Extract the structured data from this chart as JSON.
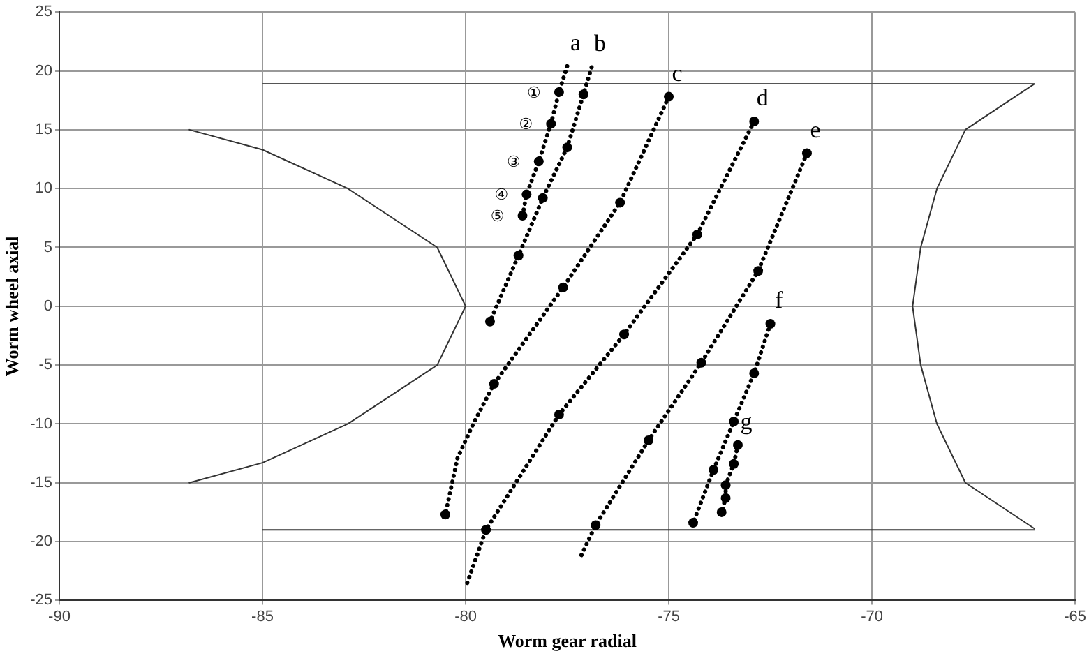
{
  "chart_data": {
    "type": "line",
    "xlabel": "Worm gear radial",
    "ylabel": "Worm wheel axial",
    "xlim": [
      -90,
      -65
    ],
    "xticks": [
      -90,
      -85,
      -80,
      -75,
      -70,
      -65
    ],
    "ylim": [
      -25,
      25
    ],
    "yticks": [
      -25,
      -20,
      -15,
      -10,
      -5,
      0,
      5,
      10,
      15,
      20,
      25
    ],
    "grid": true,
    "legend": false,
    "marker": "none",
    "line_style": "solid",
    "series": [
      {
        "color": "#333333",
        "x": [
          -86.8,
          -85,
          -82.9,
          -80.7,
          -80,
          -80.7,
          -82.9,
          -85,
          -86.8
        ],
        "values": [
          15,
          13.3,
          10,
          5,
          0,
          -5,
          -10,
          -13.3,
          -15
        ]
      },
      {
        "color": "#333333",
        "x": [
          -66,
          -67.7,
          -68.4,
          -68.8,
          -69,
          -68.8,
          -68.4,
          -67.7,
          -66
        ],
        "values": [
          18.9,
          15,
          10,
          5,
          0,
          -5,
          -10,
          -15,
          -18.9
        ]
      },
      {
        "color": "#555555",
        "x": [
          -85,
          -66
        ],
        "values": [
          18.9,
          18.9
        ]
      },
      {
        "color": "#333333",
        "x": [
          -85,
          -66
        ],
        "values": [
          -19,
          -19
        ]
      },
      {
        "name": "a",
        "color": "#000000",
        "line_style": "dotted",
        "x": [
          -77.5,
          -77.7,
          -77.9,
          -78.2,
          -78.5,
          -78.6
        ],
        "values": [
          20.4,
          18.2,
          15.5,
          12.3,
          9.5,
          7.7
        ]
      },
      {
        "name": "b",
        "color": "#000000",
        "line_style": "dotted",
        "x": [
          -76.9,
          -77.1,
          -77.5,
          -78.1,
          -78.7,
          -79.4
        ],
        "values": [
          20.3,
          18,
          13.5,
          9.2,
          4.3,
          -1.3
        ]
      },
      {
        "name": "c",
        "color": "#000000",
        "line_style": "dotted",
        "x": [
          -75,
          -76.2,
          -77.6,
          -79.3,
          -79.8,
          -80.2,
          -80.5
        ],
        "values": [
          17.8,
          8.8,
          1.6,
          -6.6,
          -9.9,
          -12.9,
          -17.7
        ]
      },
      {
        "name": "d",
        "color": "#000000",
        "line_style": "dotted",
        "x": [
          -72.9,
          -74.3,
          -76.1,
          -77.7,
          -79.5,
          -80
        ],
        "values": [
          15.7,
          6.1,
          -2.4,
          -9.2,
          -19,
          -23.9
        ]
      },
      {
        "name": "e",
        "color": "#000000",
        "line_style": "dotted",
        "x": [
          -71.6,
          -72.8,
          -74.2,
          -75.5,
          -76.8,
          -77.2
        ],
        "values": [
          13,
          3,
          -4.8,
          -11.4,
          -18.6,
          -21.5
        ]
      },
      {
        "name": "f",
        "color": "#000000",
        "line_style": "dotted",
        "x": [
          -72.5,
          -72.9,
          -73.4,
          -73.9,
          -74.4
        ],
        "values": [
          -1.5,
          -5.7,
          -9.8,
          -13.9,
          -18.4
        ]
      },
      {
        "name": "g",
        "color": "#000000",
        "line_style": "dotted",
        "x": [
          -73.3,
          -73.4,
          -73.6,
          -73.6,
          -73.7
        ],
        "values": [
          -11.8,
          -13.4,
          -15.2,
          -16.3,
          -17.5
        ]
      },
      {
        "type": "scatter",
        "marker": "circle",
        "color": "#000000",
        "x": [
          -77.7,
          -77.9,
          -78.2,
          -78.5,
          -78.6,
          -77.1,
          -77.5,
          -78.1,
          -78.7,
          -79.4,
          -75,
          -76.2,
          -77.6,
          -79.3,
          -80.5,
          -72.9,
          -74.3,
          -76.1,
          -77.7,
          -79.5,
          -71.6,
          -72.8,
          -74.2,
          -75.5,
          -76.8,
          -72.5,
          -72.9,
          -73.4,
          -73.9,
          -74.4,
          -73.3,
          -73.4,
          -73.6,
          -73.6,
          -73.7
        ],
        "values": [
          18.2,
          15.5,
          12.3,
          9.5,
          7.7,
          18,
          13.5,
          9.2,
          4.3,
          -1.3,
          17.8,
          8.8,
          1.6,
          -6.6,
          -17.7,
          15.7,
          6.1,
          -2.4,
          -9.2,
          -19,
          13,
          3,
          -4.8,
          -11.4,
          -18.6,
          -1.5,
          -5.7,
          -9.8,
          -13.9,
          -18.4,
          -11.8,
          -13.4,
          -15.2,
          -16.3,
          -17.5
        ]
      }
    ],
    "annotations": [
      {
        "text": "①",
        "x": -77.7,
        "y": 18.2
      },
      {
        "text": "②",
        "x": -77.9,
        "y": 15.5
      },
      {
        "text": "③",
        "x": -78.2,
        "y": 12.3
      },
      {
        "text": "④",
        "x": -78.5,
        "y": 9.5
      },
      {
        "text": "⑤",
        "x": -78.6,
        "y": 7.7
      }
    ]
  }
}
